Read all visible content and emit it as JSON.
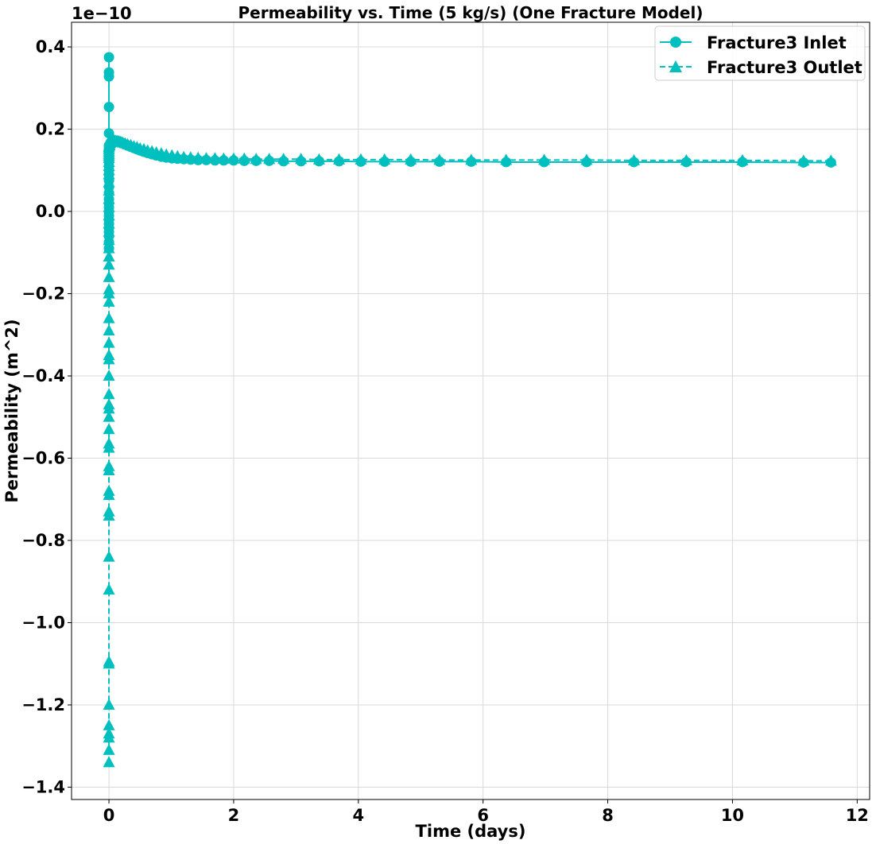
{
  "chart_data": {
    "type": "line",
    "title": "Permeability vs. Time (5 kg/s) (One Fracture Model)",
    "xlabel": "Time (days)",
    "ylabel": "Permeability (m^2)",
    "y_offset_text": "1e−10",
    "y_scale": 1e-10,
    "xlim": [
      -0.6,
      12.2
    ],
    "ylim": [
      -1.43,
      0.46
    ],
    "x_ticks": [
      0,
      2,
      4,
      6,
      8,
      10,
      12
    ],
    "x_tick_labels": [
      "0",
      "2",
      "4",
      "6",
      "8",
      "10",
      "12"
    ],
    "y_ticks": [
      0.4,
      0.2,
      0.0,
      -0.2,
      -0.4,
      -0.6,
      -0.8,
      -1.0,
      -1.2,
      -1.4
    ],
    "y_tick_labels": [
      "0.4",
      "0.2",
      "0.0",
      "−0.2",
      "−0.4",
      "−0.6",
      "−0.8",
      "−1.0",
      "−1.2",
      "−1.4"
    ],
    "grid": true,
    "legend_position": "top-right",
    "color": "#00BFBF",
    "series": [
      {
        "name": "Fracture3 Inlet",
        "marker": "circle",
        "linestyle": "solid",
        "x": [
          0.0,
          0.0,
          0.0,
          0.0,
          0.0,
          0.0,
          0.0,
          0.0,
          0.0,
          0.0,
          0.0,
          0.0,
          0.0,
          0.0,
          0.0,
          0.0,
          0.0,
          0.0,
          0.0,
          0.0,
          0.0,
          0.0,
          0.0,
          0.0,
          0.0,
          0.0,
          0.0,
          0.0,
          0.0,
          0.0,
          0.01,
          0.01,
          0.02,
          0.03,
          0.04,
          0.06,
          0.08,
          0.1,
          0.13,
          0.16,
          0.19,
          0.22,
          0.26,
          0.3,
          0.35,
          0.4,
          0.45,
          0.5,
          0.56,
          0.62,
          0.69,
          0.76,
          0.84,
          0.92,
          1.01,
          1.1,
          1.2,
          1.31,
          1.43,
          1.56,
          1.7,
          1.84,
          2.0,
          2.17,
          2.36,
          2.57,
          2.8,
          3.08,
          3.37,
          3.69,
          4.04,
          4.42,
          4.84,
          5.3,
          5.81,
          6.37,
          6.98,
          7.66,
          8.42,
          9.26,
          10.16,
          11.14,
          11.58
        ],
        "values": [
          0.375,
          0.338,
          0.328,
          0.254,
          0.19,
          0.16,
          0.155,
          0.15,
          0.145,
          0.14,
          0.13,
          0.12,
          0.11,
          0.1,
          0.09,
          0.075,
          0.06,
          0.045,
          0.03,
          0.02,
          0.01,
          0.0,
          -0.01,
          -0.02,
          -0.03,
          -0.04,
          -0.05,
          -0.06,
          -0.075,
          -0.09,
          0.155,
          0.16,
          0.165,
          0.168,
          0.17,
          0.171,
          0.172,
          0.172,
          0.171,
          0.17,
          0.168,
          0.166,
          0.163,
          0.16,
          0.157,
          0.154,
          0.151,
          0.148,
          0.145,
          0.142,
          0.139,
          0.136,
          0.133,
          0.131,
          0.129,
          0.128,
          0.127,
          0.126,
          0.125,
          0.125,
          0.124,
          0.124,
          0.124,
          0.123,
          0.123,
          0.123,
          0.122,
          0.122,
          0.122,
          0.122,
          0.121,
          0.121,
          0.121,
          0.121,
          0.121,
          0.12,
          0.12,
          0.12,
          0.12,
          0.12,
          0.12,
          0.119,
          0.119
        ]
      },
      {
        "name": "Fracture3 Outlet",
        "marker": "triangle",
        "linestyle": "dashed",
        "x": [
          0.0,
          0.0,
          0.0,
          0.0,
          0.0,
          0.0,
          0.0,
          0.0,
          0.0,
          0.0,
          0.0,
          0.0,
          0.0,
          0.0,
          0.0,
          0.0,
          0.0,
          0.0,
          0.0,
          0.0,
          0.0,
          0.0,
          0.0,
          0.0,
          0.0,
          0.0,
          0.0,
          0.0,
          0.0,
          0.0,
          0.0,
          0.0,
          0.0,
          0.0,
          0.0,
          0.0,
          0.0,
          0.0,
          0.0,
          0.0,
          0.0,
          0.0,
          0.0,
          0.0,
          0.0,
          0.0,
          0.0,
          0.0,
          0.0,
          0.0,
          0.0,
          0.0,
          0.0,
          0.0,
          0.0,
          0.01,
          0.01,
          0.02,
          0.03,
          0.04,
          0.06,
          0.08,
          0.1,
          0.13,
          0.16,
          0.19,
          0.22,
          0.26,
          0.3,
          0.35,
          0.4,
          0.45,
          0.5,
          0.56,
          0.62,
          0.69,
          0.76,
          0.84,
          0.92,
          1.01,
          1.1,
          1.2,
          1.31,
          1.43,
          1.56,
          1.7,
          1.84,
          2.0,
          2.17,
          2.36,
          2.57,
          2.8,
          3.08,
          3.37,
          3.69,
          4.04,
          4.42,
          4.84,
          5.3,
          5.81,
          6.37,
          6.98,
          7.66,
          8.42,
          9.26,
          10.16,
          11.14,
          11.58
        ],
        "values": [
          -1.34,
          -1.31,
          -1.28,
          -1.27,
          -1.25,
          -1.2,
          -1.1,
          -1.095,
          -0.92,
          -0.84,
          -0.74,
          -0.73,
          -0.69,
          -0.68,
          -0.63,
          -0.62,
          -0.575,
          -0.565,
          -0.53,
          -0.5,
          -0.48,
          -0.47,
          -0.445,
          -0.4,
          -0.36,
          -0.35,
          -0.32,
          -0.29,
          -0.26,
          -0.22,
          -0.2,
          -0.19,
          -0.16,
          -0.13,
          -0.11,
          -0.09,
          -0.07,
          -0.05,
          -0.03,
          -0.01,
          0.01,
          0.03,
          0.05,
          0.07,
          0.09,
          0.1,
          0.11,
          0.12,
          0.13,
          0.135,
          0.14,
          0.145,
          0.15,
          0.155,
          0.158,
          0.16,
          0.163,
          0.166,
          0.168,
          0.17,
          0.171,
          0.172,
          0.172,
          0.171,
          0.17,
          0.169,
          0.167,
          0.165,
          0.163,
          0.161,
          0.158,
          0.156,
          0.153,
          0.151,
          0.148,
          0.146,
          0.143,
          0.141,
          0.138,
          0.136,
          0.134,
          0.132,
          0.131,
          0.13,
          0.129,
          0.129,
          0.128,
          0.128,
          0.128,
          0.127,
          0.127,
          0.127,
          0.127,
          0.126,
          0.126,
          0.126,
          0.126,
          0.126,
          0.125,
          0.125,
          0.125,
          0.125,
          0.125,
          0.124,
          0.124,
          0.124,
          0.123,
          0.123
        ]
      }
    ]
  }
}
